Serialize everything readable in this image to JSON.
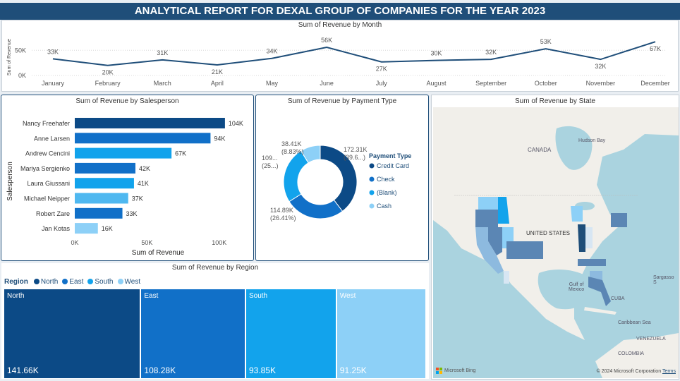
{
  "report_title": "ANALYTICAL REPORT FOR DEXAL GROUP OF COMPANIES FOR THE YEAR 2023",
  "colors": {
    "navy": "#0c4a86",
    "blue": "#1170c8",
    "sky": "#12a3ec",
    "light": "#8dd0f7"
  },
  "line_chart": {
    "title": "Sum of Revenue by Month",
    "y_axis_title": "Sum of Revenue",
    "y_ticks": [
      "50K",
      "0K"
    ],
    "chart_data": {
      "type": "line",
      "x": [
        "January",
        "February",
        "March",
        "April",
        "May",
        "June",
        "July",
        "August",
        "September",
        "October",
        "November",
        "December"
      ],
      "values": [
        33,
        20,
        31,
        21,
        34,
        56,
        27,
        30,
        32,
        53,
        32,
        67
      ],
      "labels": [
        "33K",
        "20K",
        "31K",
        "21K",
        "34K",
        "56K",
        "27K",
        "30K",
        "32K",
        "53K",
        "32K",
        "67K"
      ],
      "ylim": [
        0,
        70
      ],
      "unit": "thousands"
    }
  },
  "bar_chart": {
    "title": "Sum of Revenue by Salesperson",
    "ylabel": "Salesperson",
    "xlabel": "Sum of Revenue",
    "x_ticks": [
      "0K",
      "50K",
      "100K"
    ],
    "chart_data": {
      "type": "bar",
      "categories": [
        "Nancy Freehafer",
        "Anne Larsen",
        "Andrew Cencini",
        "Mariya Sergienko",
        "Laura Giussani",
        "Michael Neipper",
        "Robert Zare",
        "Jan Kotas"
      ],
      "values": [
        104,
        94,
        67,
        42,
        41,
        37,
        33,
        16
      ],
      "labels": [
        "104K",
        "94K",
        "67K",
        "42K",
        "41K",
        "37K",
        "33K",
        "16K"
      ],
      "bar_colors": [
        "#0c4a86",
        "#1170c8",
        "#12a3ec",
        "#1170c8",
        "#12a3ec",
        "#4fb8f0",
        "#1170c8",
        "#8dd0f7"
      ],
      "xlim": [
        0,
        115
      ],
      "unit": "thousands"
    }
  },
  "donut_chart": {
    "title": "Sum of Revenue by Payment Type",
    "legend_title": "Payment Type",
    "chart_data": {
      "type": "pie",
      "categories": [
        "Credit Card",
        "Check",
        "(Blank)",
        "Cash"
      ],
      "values": [
        172.31,
        114.89,
        109,
        38.41
      ],
      "colors": [
        "#0c4a86",
        "#1170c8",
        "#12a3ec",
        "#8dd0f7"
      ],
      "labels_value": [
        "172.31K",
        "114.89K",
        "109...",
        "38.41K"
      ],
      "labels_pct": [
        "(39.6...)",
        "(26.41%)",
        "(25...)",
        "(8.83%)"
      ]
    }
  },
  "treemap": {
    "title": "Sum of Revenue by Region",
    "legend_title": "Region",
    "chart_data": {
      "type": "treemap",
      "categories": [
        "North",
        "East",
        "South",
        "West"
      ],
      "values": [
        141.66,
        108.28,
        93.85,
        91.25
      ],
      "labels": [
        "141.66K",
        "108.28K",
        "93.85K",
        "91.25K"
      ],
      "colors": [
        "#0c4a86",
        "#1170c8",
        "#12a3ec",
        "#8dd0f7"
      ]
    }
  },
  "map": {
    "title": "Sum of Revenue by State",
    "labels": {
      "canada": "CANADA",
      "hudson": "Hudson Bay",
      "us": "UNITED STATES",
      "gulf": "Gulf of\nMexico",
      "sargasso": "Sargasso S",
      "cuba": "CUBA",
      "caribbean": "Caribbean Sea",
      "venezuela": "VENEZUELA",
      "colombia": "COLOMBIA"
    },
    "attribution": "Microsoft Bing",
    "copyright": "© 2024 Microsoft Corporation",
    "terms": "Terms"
  }
}
